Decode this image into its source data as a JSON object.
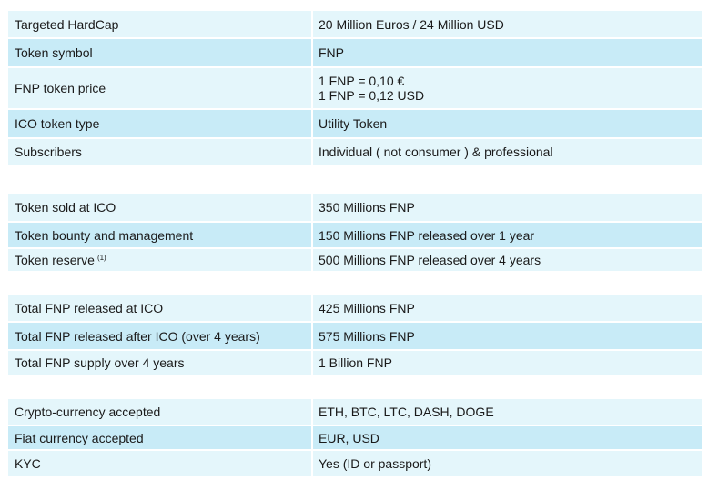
{
  "groups": [
    {
      "rows": [
        {
          "label": "Targeted HardCap",
          "value": "20 Million Euros / 24 Million USD"
        },
        {
          "label": "Token symbol",
          "value": "FNP"
        },
        {
          "label": "FNP token price",
          "value_lines": [
            "1 FNP = 0,10 €",
            "1 FNP = 0,12 USD"
          ]
        },
        {
          "label": "ICO token type",
          "value": "Utility Token"
        },
        {
          "label": "Subscribers",
          "value": "Individual ( not consumer ) & professional"
        }
      ]
    },
    {
      "rows": [
        {
          "label": "Token sold at ICO",
          "value": "350 Millions FNP"
        },
        {
          "label": "Token bounty and management",
          "value": "150 Millions FNP released over 1 year"
        },
        {
          "label": "Token reserve",
          "footnote": "(1)",
          "value": "500 Millions FNP released over 4 years"
        }
      ]
    },
    {
      "rows": [
        {
          "label": "Total FNP released at ICO",
          "value": "425 Millions FNP"
        },
        {
          "label": "Total FNP released after ICO (over 4 years)",
          "value": "575 Millions FNP"
        },
        {
          "label": "Total FNP supply over 4 years",
          "value": "1 Billion FNP"
        }
      ]
    },
    {
      "rows": [
        {
          "label": "Crypto-currency accepted",
          "value": "ETH, BTC, LTC, DASH, DOGE"
        },
        {
          "label": "Fiat currency accepted",
          "value": "EUR, USD"
        },
        {
          "label": "KYC",
          "value": "Yes (ID or passport)"
        }
      ]
    }
  ],
  "colors": {
    "row_light": "#e4f6fb",
    "row_dark": "#c8ebf7",
    "text": "#1a1a1a"
  }
}
